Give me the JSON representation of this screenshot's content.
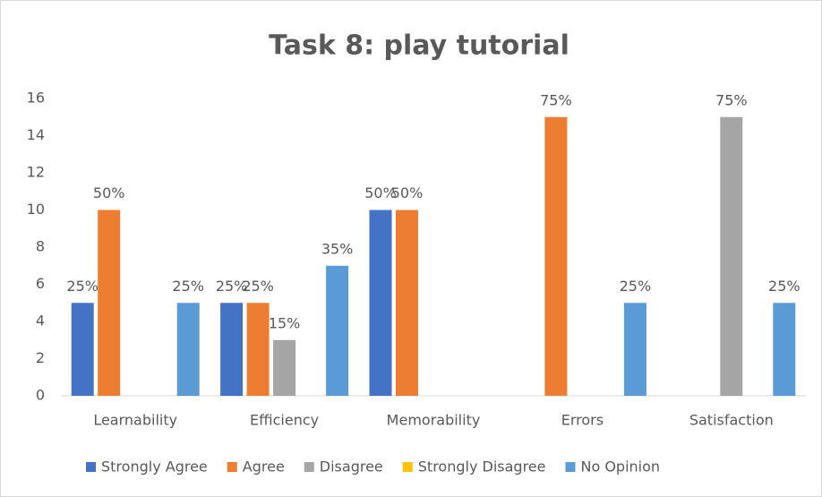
{
  "chart_data": {
    "type": "bar",
    "title": "Task 8: play tutorial",
    "categories": [
      "Learnability",
      "Efficiency",
      "Memorability",
      "Errors",
      "Satisfaction"
    ],
    "series": [
      {
        "name": "Strongly Agree",
        "color": "#4472c4",
        "values": [
          5,
          5,
          10,
          0,
          0
        ],
        "value_labels": [
          "25%",
          "25%",
          "50%",
          null,
          null
        ]
      },
      {
        "name": "Agree",
        "color": "#ed7d31",
        "values": [
          10,
          5,
          10,
          15,
          0
        ],
        "value_labels": [
          "50%",
          "25%",
          "50%",
          "75%",
          null
        ]
      },
      {
        "name": "Disagree",
        "color": "#a5a5a5",
        "values": [
          0,
          3,
          0,
          0,
          15
        ],
        "value_labels": [
          null,
          "15%",
          null,
          null,
          "75%"
        ]
      },
      {
        "name": "Strongly Disagree",
        "color": "#ffc000",
        "values": [
          0,
          0,
          0,
          0,
          0
        ],
        "value_labels": [
          null,
          null,
          null,
          null,
          null
        ]
      },
      {
        "name": "No Opinion",
        "color": "#5b9bd5",
        "values": [
          5,
          7,
          0,
          5,
          5
        ],
        "value_labels": [
          "25%",
          "35%",
          null,
          "25%",
          "25%"
        ]
      }
    ],
    "ylim": [
      0,
      16
    ],
    "yticks": [
      0,
      2,
      4,
      6,
      8,
      10,
      12,
      14,
      16
    ],
    "grid": false,
    "legend": "bottom"
  }
}
